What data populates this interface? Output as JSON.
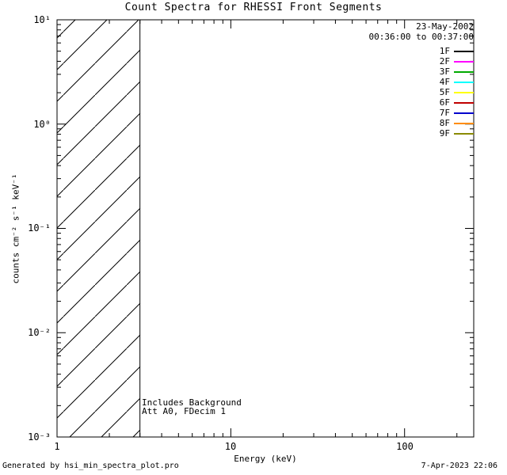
{
  "title": "Count Spectra for RHESSI Front Segments",
  "legend": {
    "date": "23-May-2002",
    "time_range": "00:36:00 to 00:37:00",
    "entries": [
      {
        "label": "1F",
        "color": "#000000"
      },
      {
        "label": "2F",
        "color": "#ff00ff"
      },
      {
        "label": "3F",
        "color": "#00aa00"
      },
      {
        "label": "4F",
        "color": "#00ffff"
      },
      {
        "label": "5F",
        "color": "#ffff00"
      },
      {
        "label": "6F",
        "color": "#c00000"
      },
      {
        "label": "7F",
        "color": "#0000cc"
      },
      {
        "label": "8F",
        "color": "#ff8c00"
      },
      {
        "label": "9F",
        "color": "#8a8a00"
      }
    ]
  },
  "annotations": {
    "line1": "Includes Background",
    "line2": "Att A0, FDecim 1"
  },
  "axes": {
    "x_label": "Energy (keV)",
    "y_label": "counts cm⁻² s⁻¹ keV⁻¹",
    "x_tick_labels": [
      "1",
      "10",
      "100"
    ],
    "y_tick_labels": [
      "10¹",
      "10⁰",
      "10⁻¹",
      "10⁻²",
      "10⁻³"
    ]
  },
  "footer": {
    "left": "Generated by hsi_min_spectra_plot.pro",
    "right": "7-Apr-2023 22:06"
  },
  "chart_data": {
    "type": "line",
    "title": "Count Spectra for RHESSI Front Segments",
    "xlabel": "Energy (keV)",
    "ylabel": "counts cm^-2 s^-1 keV^-1",
    "x_scale": "log",
    "y_scale": "log",
    "xlim": [
      1,
      250
    ],
    "ylim": [
      0.001,
      10
    ],
    "x_major_ticks": [
      1,
      10,
      100
    ],
    "y_major_ticks": [
      0.001,
      0.01,
      0.1,
      1,
      10
    ],
    "grid": false,
    "legend_position": "upper right",
    "legend_entries": [
      "1F",
      "2F",
      "3F",
      "4F",
      "5F",
      "6F",
      "7F",
      "8F",
      "9F"
    ],
    "series": [],
    "hatched_region": {
      "x_range": [
        1,
        3
      ],
      "y_range": [
        0.001,
        10
      ],
      "style": "diagonal-hatch"
    }
  }
}
